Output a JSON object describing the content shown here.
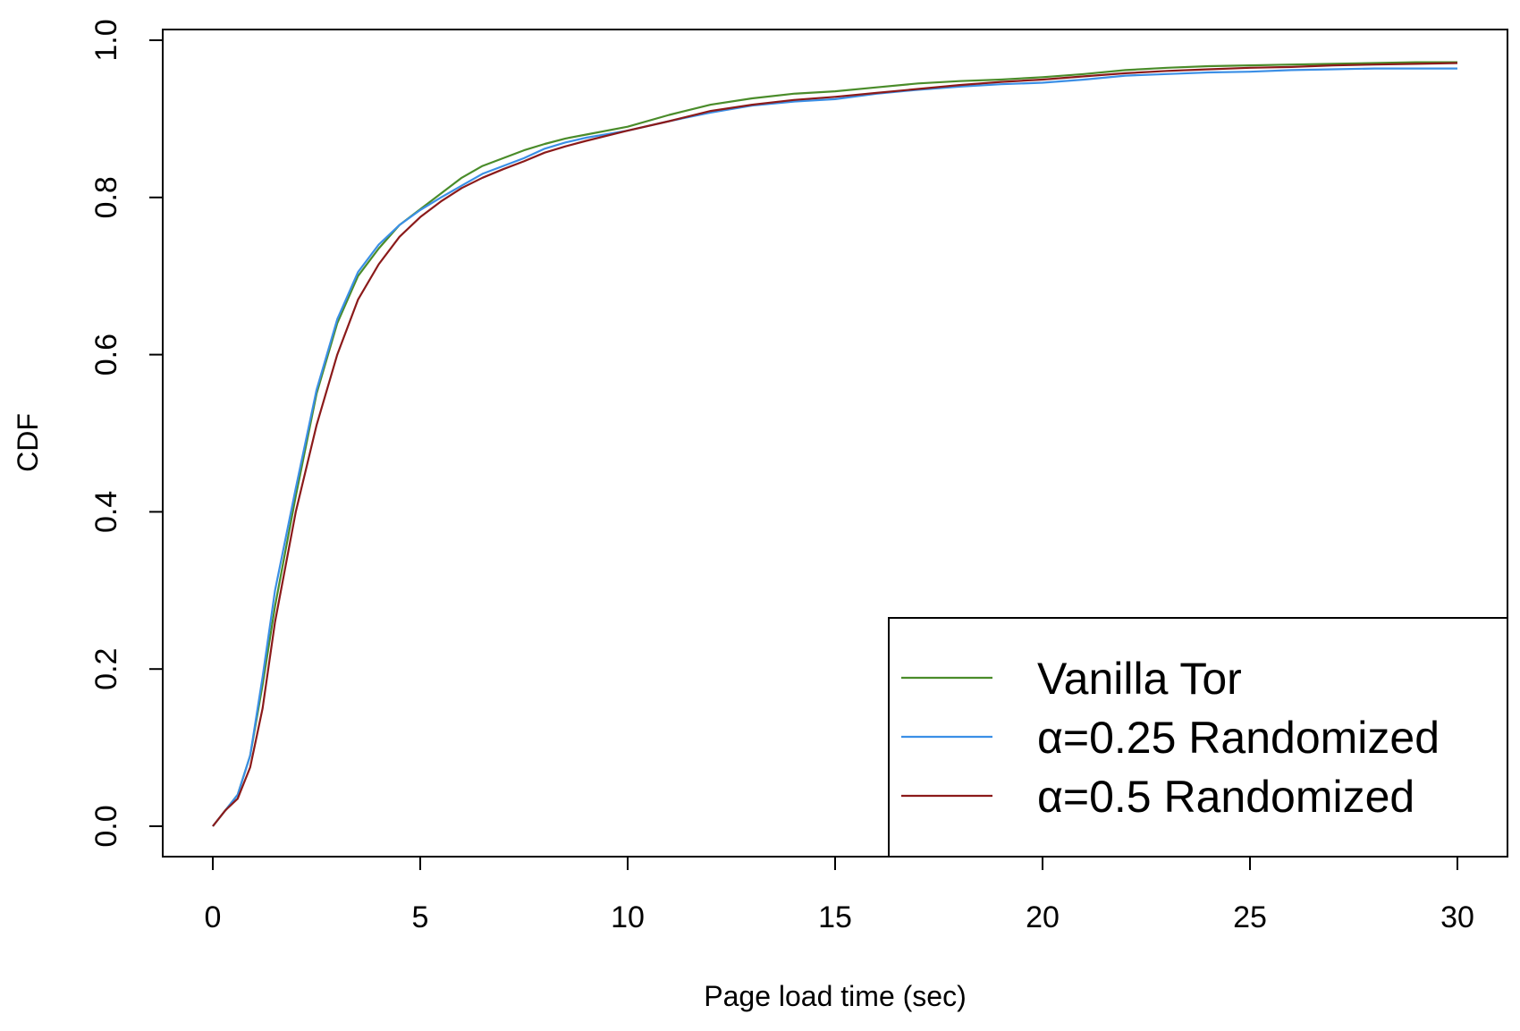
{
  "chart_data": {
    "type": "line",
    "title": "",
    "xlabel": "Page load time (sec)",
    "ylabel": "CDF",
    "xlim": [
      0,
      30
    ],
    "ylim": [
      0,
      1
    ],
    "x_ticks": [
      0,
      5,
      10,
      15,
      20,
      25,
      30
    ],
    "x_tick_labels": [
      "0",
      "5",
      "10",
      "15",
      "20",
      "25",
      "30"
    ],
    "y_ticks": [
      0,
      0.2,
      0.4,
      0.6,
      0.8,
      1.0
    ],
    "y_tick_labels": [
      "0.0",
      "0.2",
      "0.4",
      "0.6",
      "0.8",
      "1.0"
    ],
    "grid": false,
    "legend_position": "bottom-right",
    "x": [
      0,
      0.3,
      0.6,
      0.9,
      1.2,
      1.5,
      2,
      2.5,
      3,
      3.5,
      4,
      4.5,
      5,
      5.5,
      6,
      6.5,
      7,
      7.5,
      8,
      8.5,
      9,
      10,
      11,
      12,
      13,
      14,
      15,
      16,
      17,
      18,
      19,
      20,
      21,
      22,
      23,
      24,
      25,
      26,
      27,
      28,
      29,
      30
    ],
    "series": [
      {
        "name": "Vanilla Tor",
        "color": "#4a8c2a",
        "values": [
          0,
          0.02,
          0.04,
          0.09,
          0.18,
          0.28,
          0.42,
          0.55,
          0.64,
          0.7,
          0.735,
          0.765,
          0.785,
          0.805,
          0.825,
          0.84,
          0.85,
          0.86,
          0.868,
          0.875,
          0.88,
          0.89,
          0.905,
          0.918,
          0.926,
          0.932,
          0.935,
          0.94,
          0.945,
          0.948,
          0.95,
          0.953,
          0.957,
          0.962,
          0.965,
          0.967,
          0.968,
          0.969,
          0.97,
          0.971,
          0.972,
          0.972
        ]
      },
      {
        "name": "α=0.25 Randomized",
        "color": "#3b8fe6",
        "values": [
          0,
          0.02,
          0.04,
          0.09,
          0.19,
          0.3,
          0.43,
          0.555,
          0.645,
          0.705,
          0.74,
          0.765,
          0.784,
          0.8,
          0.815,
          0.83,
          0.84,
          0.85,
          0.862,
          0.87,
          0.876,
          0.885,
          0.897,
          0.908,
          0.917,
          0.922,
          0.925,
          0.932,
          0.937,
          0.941,
          0.944,
          0.946,
          0.95,
          0.955,
          0.957,
          0.959,
          0.96,
          0.962,
          0.963,
          0.964,
          0.964,
          0.964
        ]
      },
      {
        "name": "α=0.5 Randomized",
        "color": "#8b1a1a",
        "values": [
          0,
          0.02,
          0.035,
          0.075,
          0.15,
          0.26,
          0.4,
          0.51,
          0.6,
          0.67,
          0.715,
          0.75,
          0.775,
          0.795,
          0.812,
          0.825,
          0.836,
          0.846,
          0.857,
          0.865,
          0.872,
          0.885,
          0.897,
          0.91,
          0.918,
          0.924,
          0.928,
          0.933,
          0.938,
          0.943,
          0.947,
          0.95,
          0.954,
          0.958,
          0.961,
          0.963,
          0.965,
          0.966,
          0.968,
          0.969,
          0.97,
          0.971
        ]
      }
    ]
  }
}
